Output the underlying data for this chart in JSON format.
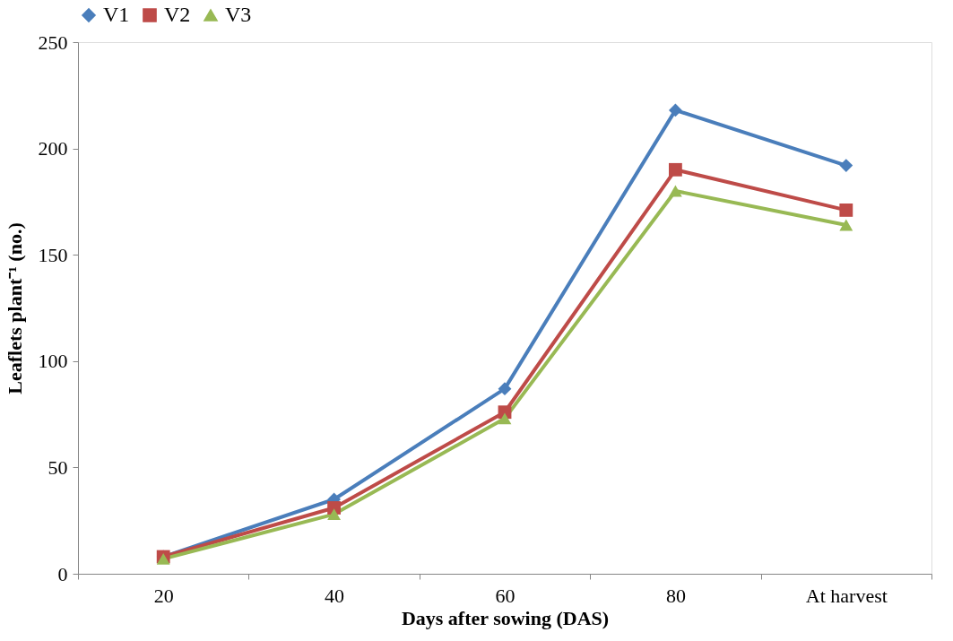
{
  "chart_data": {
    "type": "line",
    "xlabel": "Days after sowing (DAS)",
    "ylabel": "Leaflets plant⁻¹ (no.)",
    "categories": [
      "20",
      "40",
      "60",
      "80",
      "At harvest"
    ],
    "ylim": [
      0,
      250
    ],
    "yticks": [
      0,
      50,
      100,
      150,
      200,
      250
    ],
    "grid": false,
    "legend": "top",
    "line_style": "solid",
    "series": [
      {
        "name": "V1",
        "color": "#4a7ebb",
        "marker": "diamond",
        "values": [
          8,
          35,
          87,
          218,
          192
        ]
      },
      {
        "name": "V2",
        "color": "#be4b48",
        "marker": "square",
        "values": [
          8,
          31,
          76,
          190,
          171
        ]
      },
      {
        "name": "V3",
        "color": "#98b954",
        "marker": "triangle",
        "values": [
          7,
          28,
          73,
          180,
          164
        ]
      }
    ]
  }
}
